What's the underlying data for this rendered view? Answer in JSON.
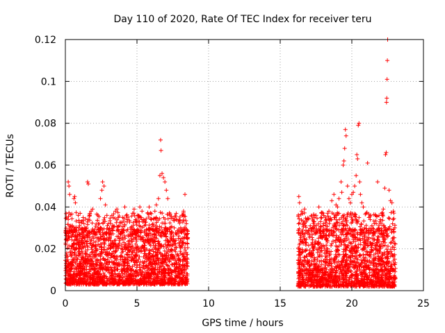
{
  "chart_data": {
    "type": "scatter",
    "title": "Day 110 of 2020, Rate Of TEC Index for receiver teru",
    "xlabel": "GPS time / hours",
    "ylabel": "ROTI / TECUs",
    "xlim": [
      0,
      25
    ],
    "ylim": [
      0,
      0.12
    ],
    "xticks": [
      0,
      5,
      10,
      15,
      20,
      25
    ],
    "xtick_labels": [
      "0",
      "5",
      "10",
      "15",
      "20",
      "25"
    ],
    "yticks": [
      0,
      0.02,
      0.04,
      0.06,
      0.08,
      0.1,
      0.12
    ],
    "ytick_labels": [
      "0",
      "0.02",
      "0.04",
      "0.06",
      "0.08",
      "0.1",
      "0.12"
    ],
    "grid": true,
    "marker": "plus",
    "color": "#ff0000",
    "series": [
      {
        "points": [
          [
            0.05,
            0.012
          ],
          [
            0.1,
            0.018
          ],
          [
            0.15,
            0.024
          ],
          [
            0.2,
            0.052
          ],
          [
            0.25,
            0.05
          ],
          [
            0.3,
            0.046
          ],
          [
            0.35,
            0.031
          ],
          [
            0.4,
            0.02
          ],
          [
            0.5,
            0.015
          ],
          [
            0.6,
            0.044
          ],
          [
            0.65,
            0.045
          ],
          [
            0.7,
            0.042
          ],
          [
            0.8,
            0.028
          ],
          [
            0.9,
            0.036
          ],
          [
            1.0,
            0.031
          ],
          [
            1.1,
            0.022
          ],
          [
            1.2,
            0.018
          ],
          [
            1.3,
            0.032
          ],
          [
            1.4,
            0.029
          ],
          [
            1.55,
            0.052
          ],
          [
            1.6,
            0.051
          ],
          [
            1.7,
            0.036
          ],
          [
            1.8,
            0.038
          ],
          [
            1.9,
            0.039
          ],
          [
            2.0,
            0.027
          ],
          [
            2.1,
            0.019
          ],
          [
            2.2,
            0.015
          ],
          [
            2.3,
            0.025
          ],
          [
            2.45,
            0.044
          ],
          [
            2.55,
            0.048
          ],
          [
            2.6,
            0.052
          ],
          [
            2.7,
            0.05
          ],
          [
            2.8,
            0.041
          ],
          [
            2.9,
            0.036
          ],
          [
            3.0,
            0.032
          ],
          [
            3.1,
            0.025
          ],
          [
            3.2,
            0.022
          ],
          [
            3.3,
            0.029
          ],
          [
            3.5,
            0.038
          ],
          [
            3.6,
            0.039
          ],
          [
            3.7,
            0.035
          ],
          [
            3.8,
            0.031
          ],
          [
            3.9,
            0.028
          ],
          [
            4.0,
            0.035
          ],
          [
            4.15,
            0.04
          ],
          [
            4.3,
            0.034
          ],
          [
            4.4,
            0.026
          ],
          [
            4.55,
            0.03
          ],
          [
            4.7,
            0.037
          ],
          [
            4.8,
            0.039
          ],
          [
            4.9,
            0.034
          ],
          [
            5.0,
            0.029
          ],
          [
            5.1,
            0.033
          ],
          [
            5.2,
            0.04
          ],
          [
            5.35,
            0.038
          ],
          [
            5.5,
            0.031
          ],
          [
            5.6,
            0.024
          ],
          [
            5.75,
            0.037
          ],
          [
            5.85,
            0.04
          ],
          [
            6.0,
            0.034
          ],
          [
            6.1,
            0.029
          ],
          [
            6.25,
            0.038
          ],
          [
            6.35,
            0.041
          ],
          [
            6.5,
            0.044
          ],
          [
            6.6,
            0.055
          ],
          [
            6.65,
            0.072
          ],
          [
            6.68,
            0.067
          ],
          [
            6.75,
            0.056
          ],
          [
            6.85,
            0.054
          ],
          [
            6.95,
            0.052
          ],
          [
            7.05,
            0.048
          ],
          [
            7.15,
            0.044
          ],
          [
            7.3,
            0.036
          ],
          [
            7.45,
            0.028
          ],
          [
            7.6,
            0.03
          ],
          [
            7.75,
            0.027
          ],
          [
            7.9,
            0.025
          ],
          [
            8.05,
            0.03
          ],
          [
            8.15,
            0.036
          ],
          [
            8.25,
            0.038
          ],
          [
            8.35,
            0.046
          ],
          [
            8.45,
            0.032
          ],
          [
            8.5,
            0.027
          ],
          [
            16.3,
            0.045
          ],
          [
            16.35,
            0.042
          ],
          [
            16.5,
            0.038
          ],
          [
            16.7,
            0.039
          ],
          [
            16.9,
            0.034
          ],
          [
            17.1,
            0.031
          ],
          [
            17.3,
            0.03
          ],
          [
            17.5,
            0.036
          ],
          [
            17.7,
            0.04
          ],
          [
            17.9,
            0.037
          ],
          [
            18.0,
            0.031
          ],
          [
            18.2,
            0.034
          ],
          [
            18.4,
            0.038
          ],
          [
            18.6,
            0.043
          ],
          [
            18.75,
            0.046
          ],
          [
            18.9,
            0.041
          ],
          [
            19.0,
            0.04
          ],
          [
            19.1,
            0.044
          ],
          [
            19.25,
            0.052
          ],
          [
            19.3,
            0.047
          ],
          [
            19.4,
            0.06
          ],
          [
            19.45,
            0.062
          ],
          [
            19.5,
            0.068
          ],
          [
            19.55,
            0.077
          ],
          [
            19.6,
            0.074
          ],
          [
            19.7,
            0.05
          ],
          [
            19.8,
            0.044
          ],
          [
            19.9,
            0.042
          ],
          [
            20.0,
            0.046
          ],
          [
            20.1,
            0.047
          ],
          [
            20.2,
            0.05
          ],
          [
            20.3,
            0.055
          ],
          [
            20.35,
            0.065
          ],
          [
            20.4,
            0.063
          ],
          [
            20.45,
            0.079
          ],
          [
            20.5,
            0.08
          ],
          [
            20.55,
            0.052
          ],
          [
            20.6,
            0.046
          ],
          [
            20.7,
            0.042
          ],
          [
            20.8,
            0.04
          ],
          [
            21.0,
            0.037
          ],
          [
            21.1,
            0.061
          ],
          [
            21.2,
            0.035
          ],
          [
            21.4,
            0.031
          ],
          [
            21.5,
            0.028
          ],
          [
            21.7,
            0.032
          ],
          [
            21.8,
            0.052
          ],
          [
            21.9,
            0.036
          ],
          [
            22.0,
            0.034
          ],
          [
            22.1,
            0.037
          ],
          [
            22.2,
            0.039
          ],
          [
            22.3,
            0.049
          ],
          [
            22.35,
            0.065
          ],
          [
            22.4,
            0.066
          ],
          [
            22.42,
            0.09
          ],
          [
            22.44,
            0.092
          ],
          [
            22.46,
            0.101
          ],
          [
            22.48,
            0.11
          ],
          [
            22.5,
            0.12
          ],
          [
            22.6,
            0.048
          ],
          [
            22.7,
            0.043
          ],
          [
            22.8,
            0.042
          ],
          [
            22.9,
            0.038
          ],
          [
            23.0,
            0.03
          ]
        ]
      }
    ],
    "dense_bands": [
      {
        "x_start": 0.0,
        "x_end": 8.55,
        "y_min": 0.003,
        "y_max": 0.03
      },
      {
        "x_start": 16.25,
        "x_end": 23.05,
        "y_min": 0.002,
        "y_max": 0.03
      }
    ]
  }
}
